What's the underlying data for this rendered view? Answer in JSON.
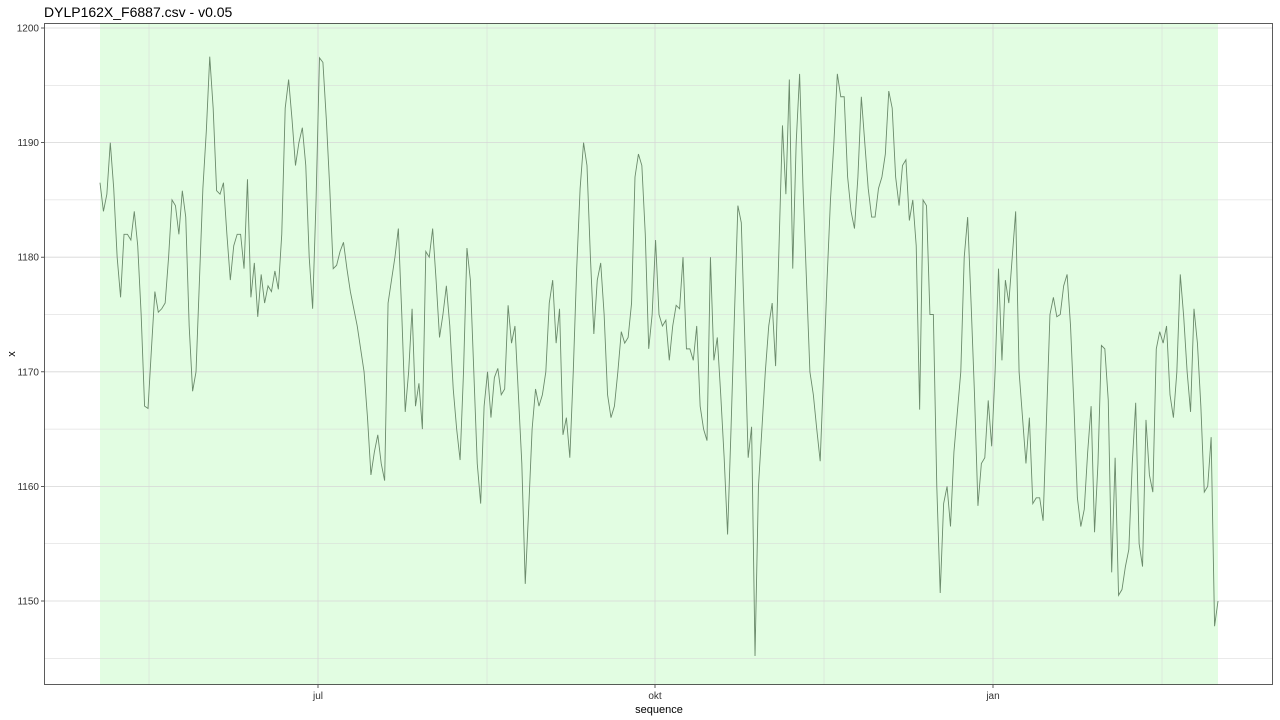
{
  "chart_data": {
    "type": "line",
    "title": "DYLP162X_F6887.csv - v0.05",
    "xlabel": "sequence",
    "ylabel": "x",
    "x_tick_labels": [
      "jul",
      "okt",
      "jan"
    ],
    "y_ticks": [
      1150,
      1160,
      1170,
      1180,
      1190,
      1200
    ],
    "ylim": [
      1143.9,
      1201.5
    ],
    "grid": true,
    "colors": {
      "line": "#6b8a6b",
      "highlight_band": "#e2fde2",
      "grid": "#d6d6d6"
    },
    "series": [
      {
        "values": [
          1186.5,
          1184,
          1185.5,
          1190,
          1186,
          1180,
          1176.5,
          1182,
          1182,
          1181.5,
          1184,
          1181,
          1175,
          1167,
          1166.8,
          1172,
          1177,
          1175.2,
          1175.5,
          1176,
          1180,
          1185,
          1184.5,
          1182,
          1185.8,
          1183.5,
          1174,
          1168.3,
          1170,
          1178,
          1186,
          1191,
          1197.5,
          1193,
          1185.8,
          1185.5,
          1186.5,
          1182,
          1178,
          1181,
          1182,
          1182,
          1179,
          1186.8,
          1176.5,
          1179.5,
          1174.8,
          1178.5,
          1176,
          1177.5,
          1177,
          1178.8,
          1177.2,
          1182,
          1193,
          1195.5,
          1192,
          1188,
          1190,
          1191.3,
          1188,
          1180,
          1175.5,
          1185,
          1197.4,
          1197,
          1192,
          1186,
          1179,
          1179.3,
          1180.5,
          1181.3,
          1179,
          1177,
          1175.5,
          1174,
          1172,
          1170,
          1166,
          1161,
          1163,
          1164.5,
          1162,
          1160.5,
          1176,
          1178,
          1180,
          1182.5,
          1175,
          1166.5,
          1170,
          1175.5,
          1167,
          1169,
          1165,
          1180.5,
          1180,
          1182.5,
          1178,
          1173,
          1175,
          1177.5,
          1174,
          1168.5,
          1165,
          1162.3,
          1170,
          1180.8,
          1178,
          1170,
          1162,
          1158.5,
          1167,
          1170,
          1166,
          1169.5,
          1170.3,
          1168,
          1168.5,
          1175.8,
          1172.5,
          1174,
          1168,
          1162,
          1151.5,
          1158,
          1165,
          1168.5,
          1167,
          1168,
          1170,
          1176,
          1178,
          1172.5,
          1175.5,
          1164.5,
          1166,
          1162.5,
          1170,
          1179,
          1186,
          1190,
          1188,
          1180,
          1173.3,
          1178,
          1179.5,
          1175,
          1168,
          1166,
          1167,
          1170,
          1173.5,
          1172.5,
          1173,
          1176,
          1187,
          1189,
          1188,
          1182,
          1172,
          1175,
          1181.5,
          1175,
          1174,
          1174.5,
          1171,
          1174,
          1175.8,
          1175.5,
          1180,
          1172,
          1172,
          1171,
          1174,
          1167,
          1165,
          1164,
          1180,
          1171,
          1173,
          1168,
          1162.5,
          1155.8,
          1165,
          1175,
          1184.5,
          1183,
          1173,
          1162.5,
          1165.2,
          1145.2,
          1160,
          1165,
          1170,
          1174,
          1176,
          1170.5,
          1181,
          1191.5,
          1185.5,
          1195.5,
          1179,
          1190,
          1196,
          1186,
          1178,
          1170,
          1168,
          1165,
          1162.2,
          1170,
          1178,
          1185,
          1190,
          1196,
          1194,
          1194,
          1187,
          1184,
          1182.5,
          1187,
          1194,
          1190,
          1186,
          1183.5,
          1183.5,
          1186,
          1187,
          1189,
          1194.5,
          1193,
          1187,
          1184.5,
          1188,
          1188.5,
          1183.2,
          1185,
          1181,
          1166.7,
          1185,
          1184.5,
          1175,
          1175,
          1160,
          1150.7,
          1158.5,
          1160,
          1156.5,
          1163,
          1166.5,
          1170,
          1180,
          1183.5,
          1176,
          1168,
          1158.3,
          1162,
          1162.5,
          1167.5,
          1163.5,
          1170,
          1179,
          1171,
          1178,
          1176,
          1180,
          1184,
          1170,
          1166,
          1162,
          1166,
          1158.5,
          1159,
          1159,
          1157,
          1166,
          1175,
          1176.5,
          1174.8,
          1175,
          1177.5,
          1178.5,
          1174,
          1167,
          1159,
          1156.5,
          1158,
          1163,
          1167,
          1156,
          1162,
          1172.3,
          1172,
          1167.5,
          1152.5,
          1162.5,
          1150.5,
          1151,
          1153,
          1154.5,
          1162,
          1167.3,
          1155,
          1153,
          1165.8,
          1161,
          1159.5,
          1172,
          1173.5,
          1172.5,
          1174,
          1168,
          1166,
          1170,
          1178.5,
          1174.8,
          1170,
          1166.5,
          1175.5,
          1172.5,
          1167,
          1159.5,
          1160,
          1164.3,
          1147.8,
          1150
        ]
      }
    ]
  }
}
